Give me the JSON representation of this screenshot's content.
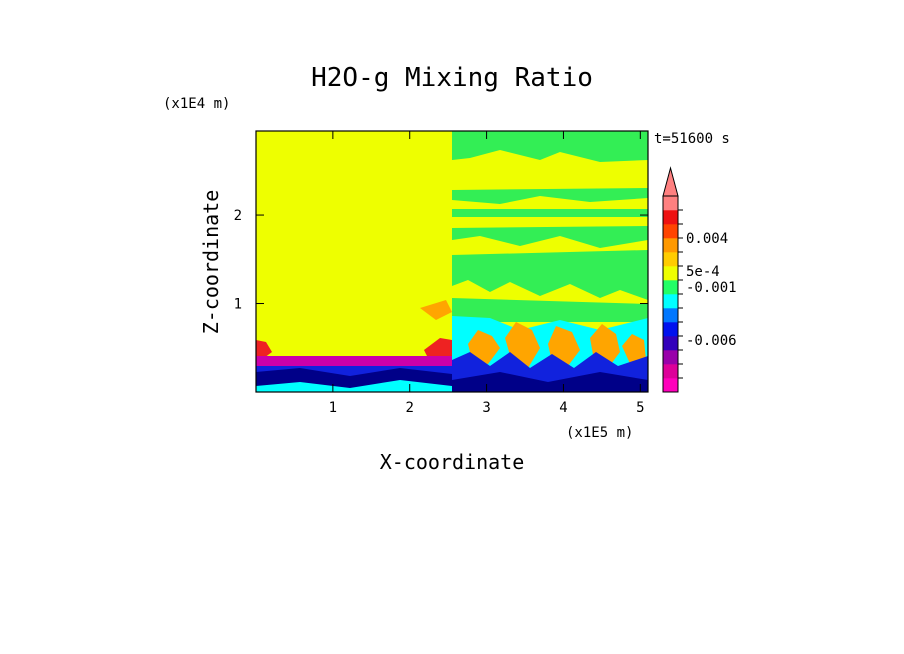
{
  "chart_data": {
    "type": "heatmap",
    "title": "H2O-g Mixing Ratio",
    "xlabel": "X-coordinate",
    "ylabel": "Z-coordinate",
    "x_scale_label": "(x1E5 m)",
    "y_scale_label": "(x1E4 m)",
    "time_label": "t=51600 s",
    "x_ticks": [
      "1",
      "2",
      "3",
      "4",
      "5"
    ],
    "x_tick_values": [
      1,
      2,
      3,
      4,
      5
    ],
    "y_ticks": [
      "1",
      "2"
    ],
    "y_tick_values": [
      1,
      2
    ],
    "xlim": [
      0,
      5.1
    ],
    "ylim": [
      0,
      2.95
    ],
    "colorbar": {
      "labels": [
        "0.004",
        "5e-4",
        "-0.001",
        "-0.006"
      ],
      "colors": [
        "#ff00bb",
        "#dd0099",
        "#9900aa",
        "#3300bb",
        "#0011ee",
        "#0077ff",
        "#00ffff",
        "#22ff66",
        "#eeff00",
        "#ffcc00",
        "#ff9900",
        "#ff4400",
        "#ee1111",
        "#ff8080"
      ],
      "extend": "max"
    },
    "regions": {
      "left_background": "#eeff00",
      "right_upper": "#eeff00",
      "green_bands": "#33ee55",
      "cyan_layer": "#00ffff",
      "orange_plumes": "#ffa500",
      "red_edges": "#ee2222",
      "purple_layer": "#cc00aa",
      "blue_base": "#1122dd",
      "navy_base": "#000088"
    }
  }
}
